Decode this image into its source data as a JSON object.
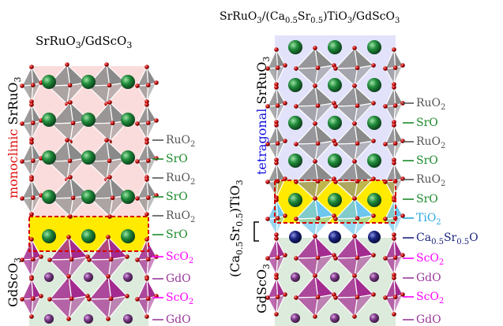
{
  "colors": {
    "pink_bg": "#fbdcdc",
    "lavender_bg": "#e2e2fb",
    "green_bg": "#dcebdc",
    "yellow": "#ffea00",
    "dashed_red": "#d40000",
    "green_atom": "#1f8a3a",
    "navy_atom": "#1a237e",
    "purple_atom": "#7a3a85",
    "oxygen": "#c00000",
    "octa_gray": "#8a8a8a",
    "octa_blue": "#6cc6ee",
    "octa_magenta": "#a32b8f",
    "label_gray": "#555555",
    "label_green": "#1a8a2a",
    "label_magenta": "#ff00ff",
    "label_purple": "#9a3a9a",
    "label_blue": "#29a8e0",
    "label_navy": "#1a237e"
  },
  "left": {
    "title": {
      "main": "SrRuO",
      "sub": "3",
      "rest": "/GdScO",
      "sub2": "3"
    },
    "side_top": {
      "prefix": "monoclinic",
      "rest": " SrRuO",
      "sub": "3"
    },
    "side_bottom": {
      "text": "GdScO",
      "sub": "3"
    },
    "layers": [
      {
        "text": "RuO",
        "sub": "2",
        "color_key": "label_gray"
      },
      {
        "text": "SrO",
        "sub": "",
        "color_key": "label_green"
      },
      {
        "text": "RuO",
        "sub": "2",
        "color_key": "label_gray"
      },
      {
        "text": "SrO",
        "sub": "",
        "color_key": "label_green"
      },
      {
        "text": "RuO",
        "sub": "2",
        "color_key": "label_gray"
      },
      {
        "text": "SrO",
        "sub": "",
        "color_key": "label_green"
      },
      {
        "text": "ScO",
        "sub": "2",
        "color_key": "label_magenta"
      },
      {
        "text": "GdO",
        "sub": "",
        "color_key": "label_purple"
      },
      {
        "text": "ScO",
        "sub": "2",
        "color_key": "label_magenta"
      },
      {
        "text": "GdO",
        "sub": "",
        "color_key": "label_purple"
      }
    ]
  },
  "right": {
    "title": {
      "a": "SrRuO",
      "a_sub": "3",
      "b": "/(Ca",
      "b_sub": "0.5",
      "c": "Sr",
      "c_sub": "0.5",
      "d": ")TiO",
      "d_sub": "3",
      "e": "/GdScO",
      "e_sub": "3"
    },
    "side_top": {
      "prefix": "tetragonal",
      "rest": " SrRuO",
      "sub": "3"
    },
    "side_middle": {
      "a": "(Ca",
      "a_sub": "0.5",
      "b": "Sr",
      "b_sub": "0.5",
      "c": ")TiO",
      "c_sub": "3"
    },
    "side_bottom": {
      "text": "GdScO",
      "sub": "3"
    },
    "layers": [
      {
        "text": "RuO",
        "sub": "2",
        "color_key": "label_gray"
      },
      {
        "text": "SrO",
        "sub": "",
        "color_key": "label_green"
      },
      {
        "text": "RuO",
        "sub": "2",
        "color_key": "label_gray"
      },
      {
        "text": "SrO",
        "sub": "",
        "color_key": "label_green"
      },
      {
        "text": "RuO",
        "sub": "2",
        "color_key": "label_gray"
      },
      {
        "text": "SrO",
        "sub": "",
        "color_key": "label_green"
      },
      {
        "text": "TiO",
        "sub": "2",
        "color_key": "label_blue"
      },
      {
        "text": "Ca",
        "sub": "0.5",
        "text2": "Sr",
        "sub2": "0.5",
        "text3": "O",
        "color_key": "label_navy"
      },
      {
        "text": "ScO",
        "sub": "2",
        "color_key": "label_magenta"
      },
      {
        "text": "GdO",
        "sub": "",
        "color_key": "label_purple"
      },
      {
        "text": "ScO",
        "sub": "2",
        "color_key": "label_magenta"
      },
      {
        "text": "GdO",
        "sub": "",
        "color_key": "label_purple"
      }
    ]
  }
}
